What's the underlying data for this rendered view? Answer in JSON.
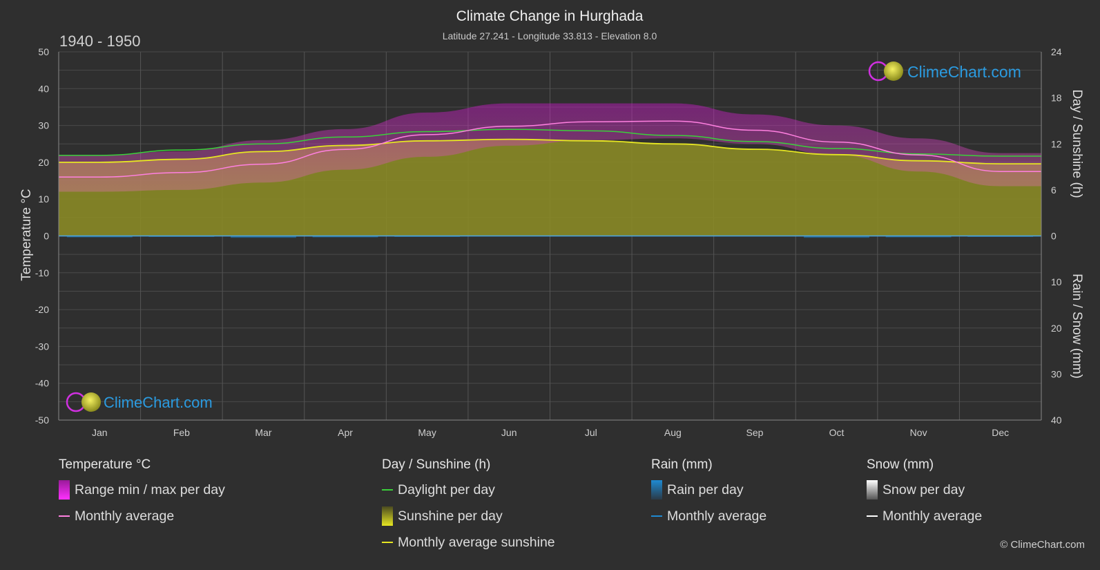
{
  "title": "Climate Change in Hurghada",
  "subtitle": "Latitude 27.241 - Longitude 33.813 - Elevation 8.0",
  "period": "1940 - 1950",
  "brand": "ClimeChart.com",
  "copyright": "© ClimeChart.com",
  "colors": {
    "background": "#2f2f2f",
    "temp_range": "#d21ed2",
    "temp_avg": "#ff80e0",
    "daylight": "#3ad13a",
    "sunshine_fill": "#8a8a26",
    "sunshine_avg": "#e6e622",
    "rain": "#1e8ad2",
    "snow": "#ffffff",
    "brand": "#2b9be0"
  },
  "legend": [
    {
      "heading": "Temperature °C",
      "items": [
        {
          "type": "box",
          "icon": "temp-range-swatch",
          "label": "Range min / max per day"
        },
        {
          "type": "line",
          "icon": "temp-avg-line",
          "label": "Monthly average"
        }
      ]
    },
    {
      "heading": "Day / Sunshine (h)",
      "items": [
        {
          "type": "line",
          "icon": "daylight-line",
          "label": "Daylight per day"
        },
        {
          "type": "box",
          "icon": "sunshine-swatch",
          "label": "Sunshine per day"
        },
        {
          "type": "line",
          "icon": "sunshine-avg-line",
          "label": "Monthly average sunshine"
        }
      ]
    },
    {
      "heading": "Rain (mm)",
      "items": [
        {
          "type": "box",
          "icon": "rain-swatch",
          "label": "Rain per day"
        },
        {
          "type": "line",
          "icon": "rain-avg-line",
          "label": "Monthly average"
        }
      ]
    },
    {
      "heading": "Snow (mm)",
      "items": [
        {
          "type": "box",
          "icon": "snow-swatch",
          "label": "Snow per day"
        },
        {
          "type": "line",
          "icon": "snow-avg-line",
          "label": "Monthly average"
        }
      ]
    }
  ],
  "chart_data": {
    "type": "area",
    "title": "Climate Change in Hurghada",
    "categories": [
      "Jan",
      "Feb",
      "Mar",
      "Apr",
      "May",
      "Jun",
      "Jul",
      "Aug",
      "Sep",
      "Oct",
      "Nov",
      "Dec"
    ],
    "y_left": {
      "label": "Temperature °C",
      "range": [
        -50,
        50
      ],
      "ticks": [
        50,
        40,
        30,
        20,
        10,
        0,
        -10,
        -20,
        -30,
        -40,
        -50
      ]
    },
    "y_right_top": {
      "label": "Day / Sunshine (h)",
      "range": [
        0,
        24
      ],
      "ticks": [
        24,
        18,
        12,
        6,
        0
      ]
    },
    "y_right_bottom": {
      "label": "Rain / Snow (mm)",
      "range": [
        0,
        40
      ],
      "ticks": [
        0,
        10,
        20,
        30,
        40
      ]
    },
    "grid": true,
    "series": [
      {
        "name": "Range min / max per day",
        "unit": "°C",
        "min": [
          12.0,
          12.5,
          14.5,
          18.0,
          21.5,
          24.5,
          26.0,
          26.5,
          25.0,
          22.0,
          17.5,
          13.5
        ],
        "max": [
          22.0,
          23.0,
          26.0,
          29.0,
          33.5,
          36.0,
          36.0,
          36.0,
          33.0,
          30.0,
          26.5,
          22.5
        ]
      },
      {
        "name": "Monthly average",
        "unit": "°C",
        "values": [
          16.0,
          17.2,
          19.5,
          23.5,
          27.5,
          29.8,
          31.0,
          31.2,
          28.7,
          25.5,
          22.0,
          17.5
        ]
      },
      {
        "name": "Daylight per day",
        "unit": "h",
        "values": [
          10.5,
          11.2,
          12.0,
          12.9,
          13.6,
          13.9,
          13.7,
          13.1,
          12.3,
          11.4,
          10.7,
          10.4
        ]
      },
      {
        "name": "Sunshine per day",
        "unit": "h",
        "values": [
          9.6,
          10.0,
          11.0,
          11.8,
          12.4,
          12.6,
          12.4,
          12.0,
          11.3,
          10.6,
          9.8,
          9.4
        ]
      },
      {
        "name": "Monthly average sunshine",
        "unit": "h",
        "values": [
          9.6,
          10.0,
          11.0,
          11.8,
          12.4,
          12.6,
          12.4,
          12.0,
          11.3,
          10.6,
          9.8,
          9.4
        ]
      },
      {
        "name": "Rain per day",
        "unit": "mm",
        "values": [
          0.3,
          0.2,
          0.4,
          0.3,
          0.2,
          0.0,
          0.0,
          0.0,
          0.0,
          0.4,
          0.3,
          0.2
        ]
      },
      {
        "name": "Snow per day",
        "unit": "mm",
        "values": [
          0,
          0,
          0,
          0,
          0,
          0,
          0,
          0,
          0,
          0,
          0,
          0
        ]
      }
    ]
  }
}
